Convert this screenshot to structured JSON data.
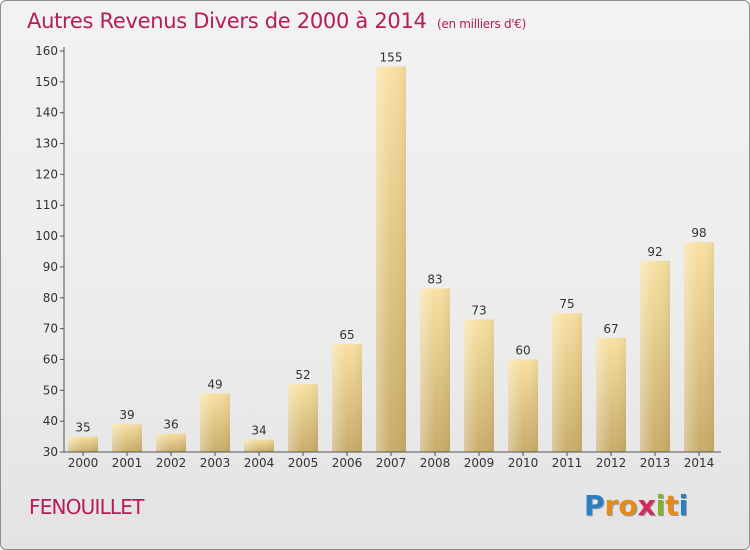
{
  "header": {
    "title": "Autres Revenus Divers de 2000 à 2014",
    "subtitle": "(en milliers d'€)"
  },
  "footer": {
    "commune": "FENOUILLET",
    "logo_letters": [
      {
        "char": "P",
        "color": "#2a7fc1"
      },
      {
        "char": "r",
        "color": "#e68a1b"
      },
      {
        "char": "o",
        "color": "#e68a1b"
      },
      {
        "char": "x",
        "color": "#d22a5a"
      },
      {
        "char": "i",
        "color": "#7db52a"
      },
      {
        "char": "t",
        "color": "#e68a1b"
      },
      {
        "char": "i",
        "color": "#2a7fc1"
      }
    ]
  },
  "colors": {
    "title": "#b71b5a",
    "bar_light": "#f8e0a2",
    "bar_dark": "#c8ad6a",
    "axis": "#555555"
  },
  "chart_data": {
    "type": "bar",
    "categories": [
      "2000",
      "2001",
      "2002",
      "2003",
      "2004",
      "2005",
      "2006",
      "2007",
      "2008",
      "2009",
      "2010",
      "2011",
      "2012",
      "2013",
      "2014"
    ],
    "values": [
      35,
      39,
      36,
      49,
      34,
      52,
      65,
      155,
      83,
      73,
      60,
      75,
      67,
      92,
      98
    ],
    "ylim": [
      30,
      160
    ],
    "yticks": [
      30,
      40,
      50,
      60,
      70,
      80,
      90,
      100,
      110,
      120,
      130,
      140,
      150,
      160
    ],
    "grid": false
  }
}
